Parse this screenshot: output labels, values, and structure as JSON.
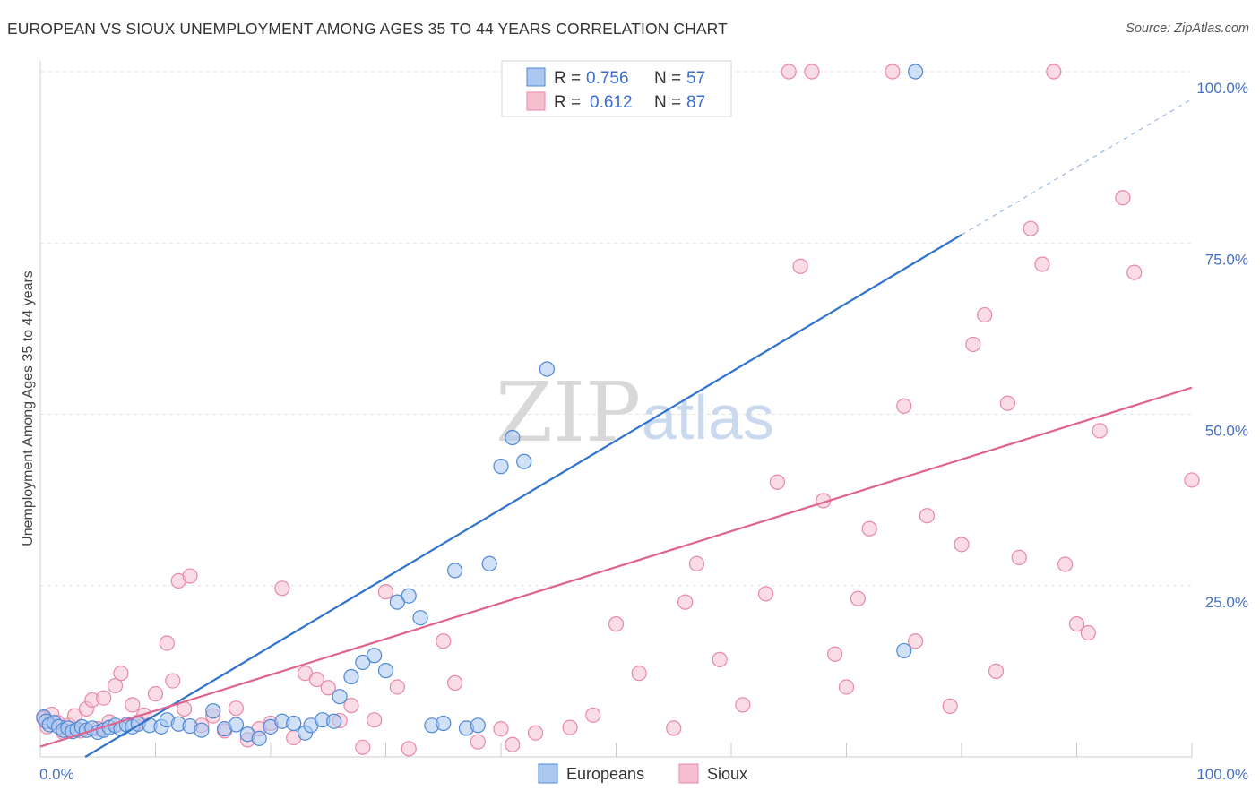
{
  "title": "EUROPEAN VS SIOUX UNEMPLOYMENT AMONG AGES 35 TO 44 YEARS CORRELATION CHART",
  "source": "Source: ZipAtlas.com",
  "watermark": {
    "zip": "ZIP",
    "atlas": "atlas"
  },
  "colors": {
    "europeans_fill": "#aac8f0",
    "europeans_stroke": "#4f88d6",
    "europeans_line": "#2f73cf",
    "sioux_fill": "#f6bfd0",
    "sioux_stroke": "#e888a8",
    "sioux_line": "#e0628f",
    "grid": "#e3e3e3",
    "tick_label": "#4472c4"
  },
  "legend": {
    "rows": [
      {
        "r_label": "R =",
        "r_value": "0.756",
        "n_label": "N =",
        "n_value": "57"
      },
      {
        "r_label": "R =",
        "r_value": "0.612",
        "n_label": "N =",
        "n_value": "87"
      }
    ]
  },
  "bottom_legend": [
    "Europeans",
    "Sioux"
  ],
  "chart_data": {
    "type": "scatter",
    "title": "EUROPEAN VS SIOUX UNEMPLOYMENT AMONG AGES 35 TO 44 YEARS CORRELATION CHART",
    "xlabel": "",
    "ylabel": "Unemployment Among Ages 35 to 44 years",
    "xlim": [
      0,
      100
    ],
    "ylim": [
      0,
      100
    ],
    "x_tick_labels": [
      "0.0%",
      "100.0%"
    ],
    "y_tick_labels": [
      "25.0%",
      "50.0%",
      "75.0%",
      "100.0%"
    ],
    "y_ticks": [
      25,
      50,
      75,
      100
    ],
    "grid": true,
    "legend_placement": "top-center",
    "series": [
      {
        "name": "Europeans",
        "r": 0.756,
        "n": 57,
        "trend": {
          "x": [
            3.9,
            80
          ],
          "y": [
            0,
            76.2
          ],
          "dashed_to": [
            100,
            96
          ]
        },
        "points": [
          [
            0.3,
            5.8
          ],
          [
            0.5,
            5.2
          ],
          [
            0.8,
            4.7
          ],
          [
            1.2,
            5.0
          ],
          [
            1.6,
            4.4
          ],
          [
            2.0,
            3.9
          ],
          [
            2.4,
            4.2
          ],
          [
            2.8,
            3.7
          ],
          [
            3.2,
            4.0
          ],
          [
            3.6,
            4.4
          ],
          [
            4.0,
            3.9
          ],
          [
            4.5,
            4.2
          ],
          [
            5.0,
            3.6
          ],
          [
            5.5,
            3.9
          ],
          [
            6.0,
            4.3
          ],
          [
            6.5,
            4.6
          ],
          [
            7.0,
            4.1
          ],
          [
            7.5,
            4.7
          ],
          [
            8.0,
            4.4
          ],
          [
            8.5,
            4.8
          ],
          [
            9.5,
            4.6
          ],
          [
            10.5,
            4.4
          ],
          [
            11.0,
            5.4
          ],
          [
            12.0,
            4.8
          ],
          [
            13.0,
            4.5
          ],
          [
            14.0,
            3.9
          ],
          [
            15.0,
            6.7
          ],
          [
            16.0,
            4.1
          ],
          [
            17.0,
            4.7
          ],
          [
            18.0,
            3.3
          ],
          [
            19.0,
            2.7
          ],
          [
            20.0,
            4.4
          ],
          [
            21.0,
            5.2
          ],
          [
            22.0,
            4.9
          ],
          [
            23.0,
            3.5
          ],
          [
            23.5,
            4.6
          ],
          [
            24.5,
            5.4
          ],
          [
            25.5,
            5.2
          ],
          [
            26.0,
            8.8
          ],
          [
            27.0,
            11.7
          ],
          [
            28.0,
            13.8
          ],
          [
            29.0,
            14.8
          ],
          [
            30.0,
            12.6
          ],
          [
            31.0,
            22.6
          ],
          [
            32.0,
            23.5
          ],
          [
            33.0,
            20.3
          ],
          [
            34.0,
            4.6
          ],
          [
            35.0,
            4.9
          ],
          [
            36.0,
            27.2
          ],
          [
            37.0,
            4.2
          ],
          [
            38.0,
            4.6
          ],
          [
            39.0,
            28.2
          ],
          [
            40.0,
            42.4
          ],
          [
            41.0,
            46.6
          ],
          [
            42.0,
            43.1
          ],
          [
            44.0,
            56.6
          ],
          [
            75.0,
            15.5
          ],
          [
            76.0,
            100.0
          ]
        ]
      },
      {
        "name": "Sioux",
        "r": 0.612,
        "n": 87,
        "trend": {
          "x": [
            0,
            100
          ],
          "y": [
            1.5,
            53.9
          ]
        },
        "points": [
          [
            0.3,
            5.6
          ],
          [
            0.6,
            4.4
          ],
          [
            1.0,
            6.2
          ],
          [
            1.5,
            5.0
          ],
          [
            2.0,
            3.6
          ],
          [
            2.5,
            4.6
          ],
          [
            3.0,
            6.0
          ],
          [
            3.5,
            3.8
          ],
          [
            4.0,
            7.0
          ],
          [
            4.5,
            8.3
          ],
          [
            5.0,
            4.1
          ],
          [
            5.5,
            8.6
          ],
          [
            6.0,
            5.1
          ],
          [
            6.5,
            10.4
          ],
          [
            7.0,
            12.2
          ],
          [
            8.0,
            7.6
          ],
          [
            8.5,
            5.1
          ],
          [
            9.0,
            6.1
          ],
          [
            10.0,
            9.2
          ],
          [
            11.0,
            16.6
          ],
          [
            11.5,
            11.1
          ],
          [
            12.0,
            25.7
          ],
          [
            12.5,
            7.0
          ],
          [
            13.0,
            26.4
          ],
          [
            14.0,
            4.6
          ],
          [
            15.0,
            6.0
          ],
          [
            16.0,
            3.8
          ],
          [
            17.0,
            7.1
          ],
          [
            18.0,
            2.5
          ],
          [
            19.0,
            4.1
          ],
          [
            20.0,
            4.9
          ],
          [
            21.0,
            24.6
          ],
          [
            22.0,
            2.8
          ],
          [
            23.0,
            12.2
          ],
          [
            24.0,
            11.3
          ],
          [
            25.0,
            10.1
          ],
          [
            26.0,
            5.3
          ],
          [
            27.0,
            7.5
          ],
          [
            28.0,
            1.4
          ],
          [
            29.0,
            5.4
          ],
          [
            30.0,
            24.1
          ],
          [
            31.0,
            10.2
          ],
          [
            32.0,
            1.2
          ],
          [
            35.0,
            16.9
          ],
          [
            36.0,
            10.8
          ],
          [
            38.0,
            2.2
          ],
          [
            40.0,
            4.1
          ],
          [
            41.0,
            1.8
          ],
          [
            43.0,
            3.5
          ],
          [
            46.0,
            4.3
          ],
          [
            48.0,
            6.1
          ],
          [
            50.0,
            19.4
          ],
          [
            52.0,
            12.2
          ],
          [
            55.0,
            4.2
          ],
          [
            56.0,
            22.6
          ],
          [
            57.0,
            28.2
          ],
          [
            59.0,
            14.2
          ],
          [
            61.0,
            7.6
          ],
          [
            63.0,
            23.8
          ],
          [
            64.0,
            40.1
          ],
          [
            65.0,
            100.0
          ],
          [
            66.0,
            71.6
          ],
          [
            67.0,
            100.0
          ],
          [
            68.0,
            37.4
          ],
          [
            69.0,
            15.0
          ],
          [
            70.0,
            10.2
          ],
          [
            71.0,
            23.1
          ],
          [
            72.0,
            33.3
          ],
          [
            74.0,
            100.0
          ],
          [
            75.0,
            51.2
          ],
          [
            76.0,
            16.9
          ],
          [
            77.0,
            35.2
          ],
          [
            79.0,
            7.4
          ],
          [
            80.0,
            31.0
          ],
          [
            81.0,
            60.2
          ],
          [
            82.0,
            64.5
          ],
          [
            83.0,
            12.5
          ],
          [
            84.0,
            51.6
          ],
          [
            85.0,
            29.1
          ],
          [
            86.0,
            77.1
          ],
          [
            87.0,
            71.9
          ],
          [
            88.0,
            100.0
          ],
          [
            89.0,
            28.1
          ],
          [
            90.0,
            19.4
          ],
          [
            91.0,
            18.1
          ],
          [
            92.0,
            47.6
          ],
          [
            94.0,
            81.6
          ],
          [
            95.0,
            70.7
          ],
          [
            100.0,
            40.4
          ]
        ]
      }
    ]
  }
}
